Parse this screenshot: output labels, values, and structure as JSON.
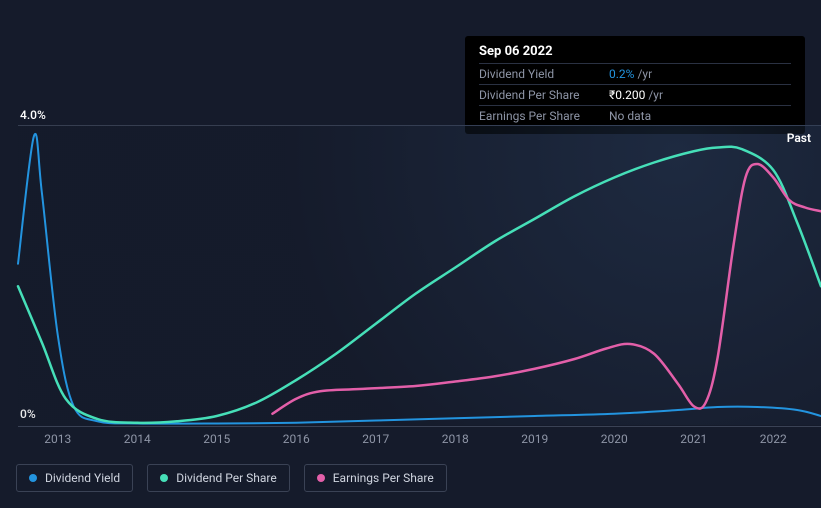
{
  "tooltip": {
    "date": "Sep 06 2022",
    "rows": [
      {
        "label": "Dividend Yield",
        "value": "0.2%",
        "unit": "/yr",
        "color": "#2394df"
      },
      {
        "label": "Dividend Per Share",
        "value": "₹0.200",
        "unit": "/yr",
        "color": "#ffffff"
      },
      {
        "label": "Earnings Per Share",
        "value": "No data",
        "unit": "",
        "color": "#8e95a6"
      }
    ]
  },
  "chart": {
    "type": "line",
    "background_color": "#151b2b",
    "ylim": [
      0,
      4
    ],
    "y_ticks": [
      {
        "label": "4.0%",
        "value": 4.0
      },
      {
        "label": "0%",
        "value": 0
      }
    ],
    "x_years": [
      2013,
      2014,
      2015,
      2016,
      2017,
      2018,
      2019,
      2020,
      2021,
      2022
    ],
    "x_min": 2012.5,
    "x_max": 2022.6,
    "past_label": "Past",
    "grid_color": "#3a4255",
    "series": [
      {
        "name": "Dividend Yield",
        "color": "#2394df",
        "stroke_width": 2,
        "points": [
          [
            2012.5,
            2.15
          ],
          [
            2012.7,
            3.85
          ],
          [
            2012.8,
            3.1
          ],
          [
            2013.0,
            1.2
          ],
          [
            2013.2,
            0.25
          ],
          [
            2013.5,
            0.05
          ],
          [
            2014.0,
            0.02
          ],
          [
            2015.0,
            0.02
          ],
          [
            2016.0,
            0.03
          ],
          [
            2017.0,
            0.06
          ],
          [
            2018.0,
            0.09
          ],
          [
            2019.0,
            0.12
          ],
          [
            2020.0,
            0.15
          ],
          [
            2020.8,
            0.2
          ],
          [
            2021.3,
            0.24
          ],
          [
            2021.8,
            0.24
          ],
          [
            2022.3,
            0.2
          ],
          [
            2022.6,
            0.12
          ]
        ]
      },
      {
        "name": "Dividend Per Share",
        "color": "#46dfb8",
        "stroke_width": 2.5,
        "points": [
          [
            2012.5,
            1.85
          ],
          [
            2012.8,
            1.1
          ],
          [
            2013.1,
            0.35
          ],
          [
            2013.5,
            0.08
          ],
          [
            2014.0,
            0.03
          ],
          [
            2014.5,
            0.05
          ],
          [
            2015.0,
            0.12
          ],
          [
            2015.5,
            0.3
          ],
          [
            2016.0,
            0.6
          ],
          [
            2016.5,
            0.95
          ],
          [
            2017.0,
            1.35
          ],
          [
            2017.5,
            1.75
          ],
          [
            2018.0,
            2.1
          ],
          [
            2018.5,
            2.45
          ],
          [
            2019.0,
            2.75
          ],
          [
            2019.5,
            3.05
          ],
          [
            2020.0,
            3.3
          ],
          [
            2020.5,
            3.5
          ],
          [
            2021.0,
            3.65
          ],
          [
            2021.3,
            3.7
          ],
          [
            2021.6,
            3.68
          ],
          [
            2022.0,
            3.4
          ],
          [
            2022.3,
            2.7
          ],
          [
            2022.6,
            1.85
          ]
        ]
      },
      {
        "name": "Earnings Per Share",
        "color": "#e35fa9",
        "stroke_width": 2.5,
        "points": [
          [
            2015.7,
            0.15
          ],
          [
            2016.0,
            0.35
          ],
          [
            2016.3,
            0.45
          ],
          [
            2016.8,
            0.48
          ],
          [
            2017.5,
            0.52
          ],
          [
            2018.0,
            0.58
          ],
          [
            2018.5,
            0.65
          ],
          [
            2019.0,
            0.75
          ],
          [
            2019.5,
            0.88
          ],
          [
            2019.9,
            1.02
          ],
          [
            2020.2,
            1.08
          ],
          [
            2020.5,
            0.95
          ],
          [
            2020.8,
            0.55
          ],
          [
            2021.0,
            0.25
          ],
          [
            2021.15,
            0.3
          ],
          [
            2021.3,
            0.9
          ],
          [
            2021.5,
            2.4
          ],
          [
            2021.65,
            3.3
          ],
          [
            2021.8,
            3.48
          ],
          [
            2022.0,
            3.3
          ],
          [
            2022.2,
            3.0
          ],
          [
            2022.4,
            2.9
          ],
          [
            2022.6,
            2.85
          ]
        ]
      }
    ]
  },
  "legend": [
    {
      "label": "Dividend Yield",
      "color": "#2394df"
    },
    {
      "label": "Dividend Per Share",
      "color": "#46dfb8"
    },
    {
      "label": "Earnings Per Share",
      "color": "#e35fa9"
    }
  ]
}
